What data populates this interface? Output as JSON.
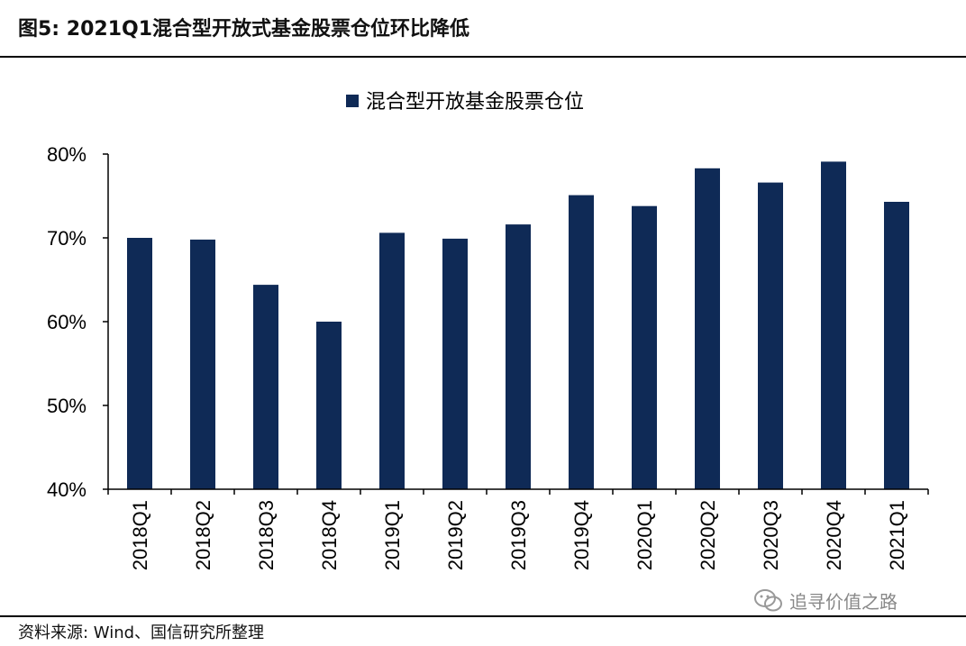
{
  "header": {
    "title": "图5:  2021Q1混合型开放式基金股票仓位环比降低"
  },
  "footer": {
    "source": "资料来源: Wind、国信研究所整理",
    "watermark": "追寻价值之路"
  },
  "colors": {
    "bar": "#0f2a56",
    "axis": "#000000"
  },
  "icons": {
    "watermark": "wechat-icon"
  },
  "chart_data": {
    "type": "bar",
    "categories": [
      "2018Q1",
      "2018Q2",
      "2018Q3",
      "2018Q4",
      "2019Q1",
      "2019Q2",
      "2019Q3",
      "2019Q4",
      "2020Q1",
      "2020Q2",
      "2020Q3",
      "2020Q4",
      "2021Q1"
    ],
    "series": [
      {
        "name": "混合型开放基金股票仓位",
        "values": [
          70.0,
          69.8,
          64.4,
          60.0,
          70.6,
          69.9,
          71.6,
          75.1,
          73.8,
          78.3,
          76.6,
          79.1,
          74.3
        ]
      }
    ],
    "ylim": [
      40,
      80
    ],
    "yticks": [
      "40%",
      "50%",
      "60%",
      "70%",
      "80%"
    ],
    "ytick_values": [
      40,
      50,
      60,
      70,
      80
    ],
    "legend": "top-center",
    "grid": false
  }
}
